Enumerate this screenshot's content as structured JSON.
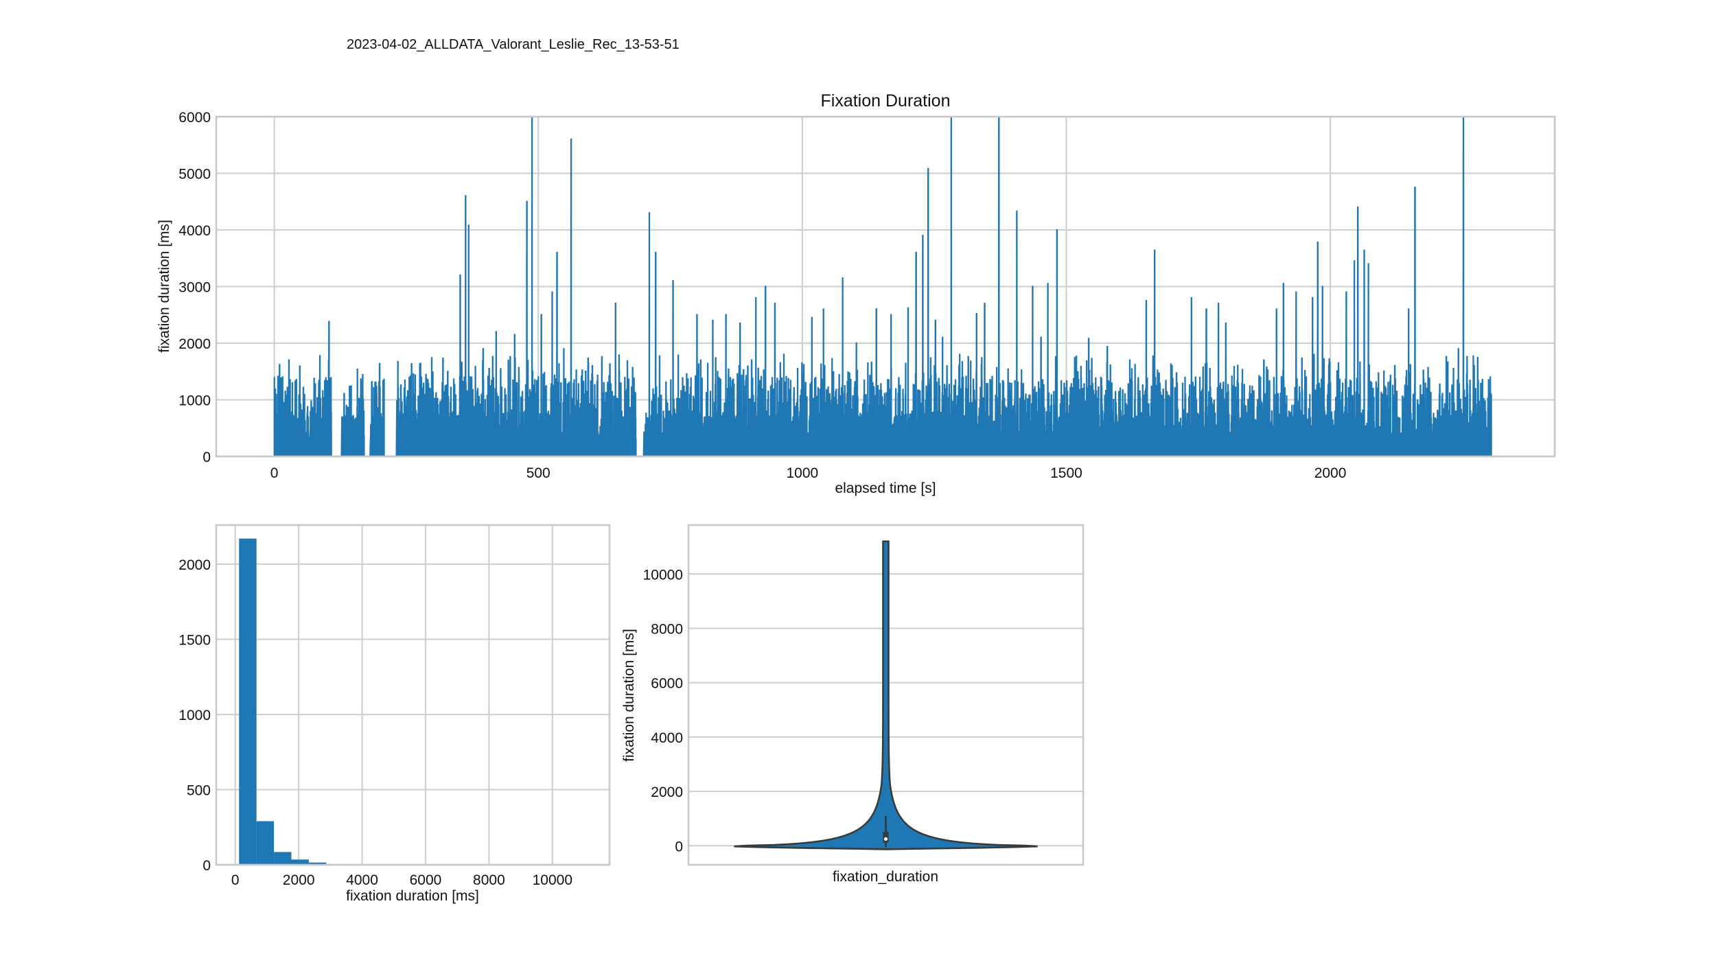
{
  "figure": {
    "suptitle": "2023-04-02_ALLDATA_Valorant_Leslie_Rec_13-53-51"
  },
  "colors": {
    "series": "#1f77b4",
    "violin_outline": "#3a3a3a",
    "grid": "#d0d0d0"
  },
  "chart_data": [
    {
      "type": "line",
      "title": "Fixation Duration",
      "xlabel": "elapsed time [s]",
      "ylabel": "fixation duration [ms]",
      "xlim": [
        -110,
        2425
      ],
      "ylim": [
        0,
        6000
      ],
      "xticks": [
        0,
        500,
        1000,
        1500,
        2000
      ],
      "yticks": [
        0,
        1000,
        2000,
        3000,
        4000,
        5000,
        6000
      ],
      "grid": true,
      "x_range_data": [
        0,
        2305
      ],
      "gaps": [
        [
          108,
          128
        ],
        [
          170,
          182
        ],
        [
          208,
          232
        ],
        [
          685,
          700
        ]
      ],
      "peaks": [
        {
          "x": 18,
          "y": 950
        },
        {
          "x": 28,
          "y": 1200
        },
        {
          "x": 34,
          "y": 1300
        },
        {
          "x": 83,
          "y": 920
        },
        {
          "x": 103,
          "y": 2380
        },
        {
          "x": 148,
          "y": 620
        },
        {
          "x": 168,
          "y": 1000
        },
        {
          "x": 202,
          "y": 750
        },
        {
          "x": 279,
          "y": 1000
        },
        {
          "x": 290,
          "y": 1300
        },
        {
          "x": 305,
          "y": 950
        },
        {
          "x": 318,
          "y": 1300
        },
        {
          "x": 352,
          "y": 3200
        },
        {
          "x": 362,
          "y": 4600
        },
        {
          "x": 368,
          "y": 4080
        },
        {
          "x": 395,
          "y": 1900
        },
        {
          "x": 420,
          "y": 2200
        },
        {
          "x": 455,
          "y": 2150
        },
        {
          "x": 478,
          "y": 4500
        },
        {
          "x": 488,
          "y": 6000
        },
        {
          "x": 505,
          "y": 2500
        },
        {
          "x": 526,
          "y": 2900
        },
        {
          "x": 535,
          "y": 3600
        },
        {
          "x": 548,
          "y": 1900
        },
        {
          "x": 562,
          "y": 5600
        },
        {
          "x": 602,
          "y": 1600
        },
        {
          "x": 646,
          "y": 2700
        },
        {
          "x": 710,
          "y": 4300
        },
        {
          "x": 722,
          "y": 3600
        },
        {
          "x": 755,
          "y": 3100
        },
        {
          "x": 800,
          "y": 2500
        },
        {
          "x": 830,
          "y": 2400
        },
        {
          "x": 855,
          "y": 2500
        },
        {
          "x": 882,
          "y": 2350
        },
        {
          "x": 912,
          "y": 2800
        },
        {
          "x": 930,
          "y": 3000
        },
        {
          "x": 948,
          "y": 2700
        },
        {
          "x": 965,
          "y": 1800
        },
        {
          "x": 1018,
          "y": 2450
        },
        {
          "x": 1040,
          "y": 2600
        },
        {
          "x": 1076,
          "y": 3150
        },
        {
          "x": 1102,
          "y": 2000
        },
        {
          "x": 1140,
          "y": 2600
        },
        {
          "x": 1168,
          "y": 2500
        },
        {
          "x": 1200,
          "y": 2620
        },
        {
          "x": 1215,
          "y": 3600
        },
        {
          "x": 1228,
          "y": 3900
        },
        {
          "x": 1238,
          "y": 5080
        },
        {
          "x": 1252,
          "y": 2400
        },
        {
          "x": 1265,
          "y": 2100
        },
        {
          "x": 1282,
          "y": 6000
        },
        {
          "x": 1298,
          "y": 1800
        },
        {
          "x": 1330,
          "y": 2520
        },
        {
          "x": 1345,
          "y": 2700
        },
        {
          "x": 1372,
          "y": 6000
        },
        {
          "x": 1406,
          "y": 4330
        },
        {
          "x": 1436,
          "y": 3000
        },
        {
          "x": 1452,
          "y": 2100
        },
        {
          "x": 1465,
          "y": 3050
        },
        {
          "x": 1482,
          "y": 4000
        },
        {
          "x": 1542,
          "y": 2080
        },
        {
          "x": 1577,
          "y": 1940
        },
        {
          "x": 1620,
          "y": 1700
        },
        {
          "x": 1651,
          "y": 2750
        },
        {
          "x": 1667,
          "y": 3640
        },
        {
          "x": 1700,
          "y": 1600
        },
        {
          "x": 1737,
          "y": 2800
        },
        {
          "x": 1765,
          "y": 2600
        },
        {
          "x": 1788,
          "y": 2700
        },
        {
          "x": 1802,
          "y": 2350
        },
        {
          "x": 1826,
          "y": 1000
        },
        {
          "x": 1850,
          "y": 1100
        },
        {
          "x": 1874,
          "y": 1700
        },
        {
          "x": 1898,
          "y": 2600
        },
        {
          "x": 1911,
          "y": 3050
        },
        {
          "x": 1935,
          "y": 2900
        },
        {
          "x": 1966,
          "y": 2800
        },
        {
          "x": 1976,
          "y": 3780
        },
        {
          "x": 1985,
          "y": 3000
        },
        {
          "x": 2015,
          "y": 1650
        },
        {
          "x": 2030,
          "y": 2900
        },
        {
          "x": 2045,
          "y": 3450
        },
        {
          "x": 2052,
          "y": 4400
        },
        {
          "x": 2064,
          "y": 3640
        },
        {
          "x": 2072,
          "y": 3400
        },
        {
          "x": 2118,
          "y": 1250
        },
        {
          "x": 2148,
          "y": 2600
        },
        {
          "x": 2160,
          "y": 4750
        },
        {
          "x": 2183,
          "y": 1200
        },
        {
          "x": 2213,
          "y": 700
        },
        {
          "x": 2233,
          "y": 1550
        },
        {
          "x": 2242,
          "y": 1900
        },
        {
          "x": 2252,
          "y": 6000
        },
        {
          "x": 2265,
          "y": 800
        },
        {
          "x": 2303,
          "y": 1400
        }
      ]
    },
    {
      "type": "bar",
      "subtype": "histogram",
      "xlabel": "fixation duration [ms]",
      "ylabel": "",
      "xlim": [
        -600,
        11800
      ],
      "ylim": [
        0,
        2260
      ],
      "xticks": [
        0,
        2000,
        4000,
        6000,
        8000,
        10000
      ],
      "yticks": [
        0,
        500,
        1000,
        1500,
        2000
      ],
      "grid": true,
      "bin_start": 120,
      "bin_width": 550,
      "counts": [
        2170,
        290,
        85,
        35,
        15,
        5,
        0,
        0,
        0,
        0,
        0,
        0,
        0,
        0,
        0,
        0,
        0,
        0,
        0,
        0
      ]
    },
    {
      "type": "violin",
      "xlabel": "fixation_duration",
      "ylabel": "fixation duration [ms]",
      "ylim": [
        -700,
        11800
      ],
      "yticks": [
        0,
        2000,
        4000,
        6000,
        8000,
        10000
      ],
      "grid": true,
      "median": 250,
      "q1": 120,
      "q3": 520,
      "whisker_low": -50,
      "whisker_high": 1100,
      "min": -130,
      "max": 11200
    }
  ]
}
